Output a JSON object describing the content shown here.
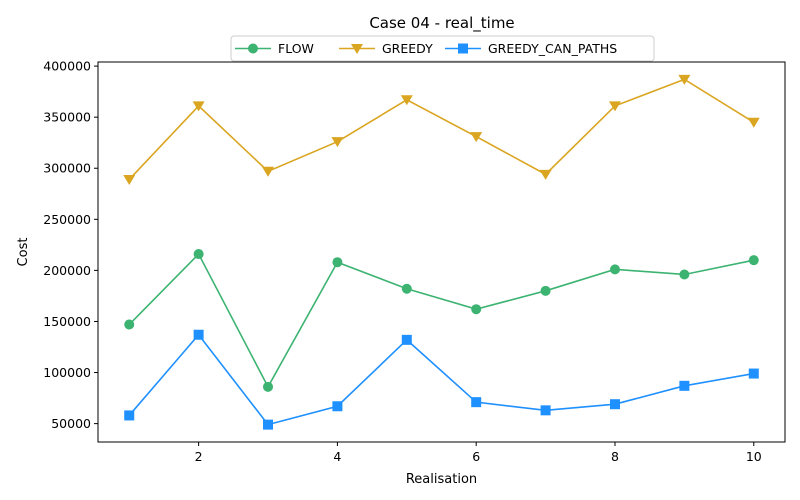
{
  "chart_data": {
    "type": "line",
    "title": "Case 04 - real_time",
    "xlabel": "Realisation",
    "ylabel": "Cost",
    "x": [
      1,
      2,
      3,
      4,
      5,
      6,
      7,
      8,
      9,
      10
    ],
    "xlim": [
      0.55,
      10.45
    ],
    "ylim": [
      32000,
      404000
    ],
    "xticks": [
      2,
      4,
      6,
      8,
      10
    ],
    "yticks": [
      50000,
      100000,
      150000,
      200000,
      250000,
      300000,
      350000,
      400000
    ],
    "grid": false,
    "legend_position": "top-center",
    "series": [
      {
        "name": "FLOW",
        "color": "#3cb371",
        "marker": "circle",
        "values": [
          147000,
          216000,
          86000,
          208000,
          182000,
          162000,
          180000,
          201000,
          196000,
          210000
        ]
      },
      {
        "name": "GREEDY",
        "color": "#daa520",
        "marker": "triangle-down",
        "values": [
          289000,
          361000,
          297000,
          326000,
          367000,
          331000,
          294000,
          361000,
          387000,
          345000
        ]
      },
      {
        "name": "GREEDY_CAN_PATHS",
        "color": "#1e90ff",
        "marker": "square",
        "values": [
          58000,
          137000,
          49000,
          67000,
          132000,
          71000,
          63000,
          69000,
          87000,
          99000
        ]
      }
    ]
  }
}
